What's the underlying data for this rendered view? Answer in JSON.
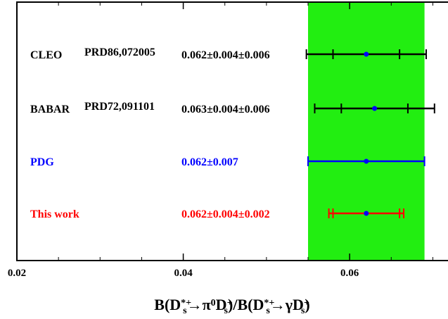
{
  "chart_data": {
    "type": "scatter",
    "title": "",
    "xlabel": {
      "parts": [
        {
          "t": "B(D",
          "s": "base"
        },
        {
          "t": "*+",
          "s": "sup"
        },
        {
          "t": "s",
          "s": "sub"
        },
        {
          "t": "→π",
          "s": "base"
        },
        {
          "t": "0",
          "s": "sup"
        },
        {
          "t": "D",
          "s": "base"
        },
        {
          "t": "+",
          "s": "sup"
        },
        {
          "t": "s",
          "s": "sub"
        },
        {
          "t": ")/B(D",
          "s": "base"
        },
        {
          "t": "*+",
          "s": "sup"
        },
        {
          "t": "s",
          "s": "sub"
        },
        {
          "t": "→γD",
          "s": "base"
        },
        {
          "t": "+",
          "s": "sup"
        },
        {
          "t": "s",
          "s": "sub"
        },
        {
          "t": ")",
          "s": "base"
        }
      ]
    },
    "ylabel": "",
    "xlim": [
      0.02,
      0.0725
    ],
    "xticks": [
      0.02,
      0.04,
      0.06
    ],
    "xtick_labels": [
      "0.02",
      "0.04",
      "0.06"
    ],
    "grid": false,
    "band": {
      "x_min": 0.055,
      "x_max": 0.069,
      "color": "#22ee11"
    },
    "measurements": [
      {
        "experiment": "CLEO",
        "reference": "PRD86,072005",
        "value_text": "0.062±0.004±0.006",
        "color": "#000000",
        "value": 0.062,
        "stat_err": 0.004,
        "syst_err": 0.006,
        "total_err": 0.0072
      },
      {
        "experiment": "BABAR",
        "reference": "PRD72,091101",
        "value_text": "0.063±0.004±0.006",
        "color": "#000000",
        "value": 0.063,
        "stat_err": 0.004,
        "syst_err": 0.006,
        "total_err": 0.0072
      },
      {
        "experiment": "PDG",
        "reference": "",
        "value_text": "0.062±0.007",
        "color": "#0000ff",
        "value": 0.062,
        "stat_err": null,
        "syst_err": null,
        "total_err": 0.007
      },
      {
        "experiment": "This work",
        "reference": "",
        "value_text": "0.062±0.004±0.002",
        "color": "#ff0000",
        "value": 0.062,
        "stat_err": 0.004,
        "syst_err": 0.002,
        "total_err": 0.0045
      }
    ],
    "marker_color": "#0000ff"
  }
}
